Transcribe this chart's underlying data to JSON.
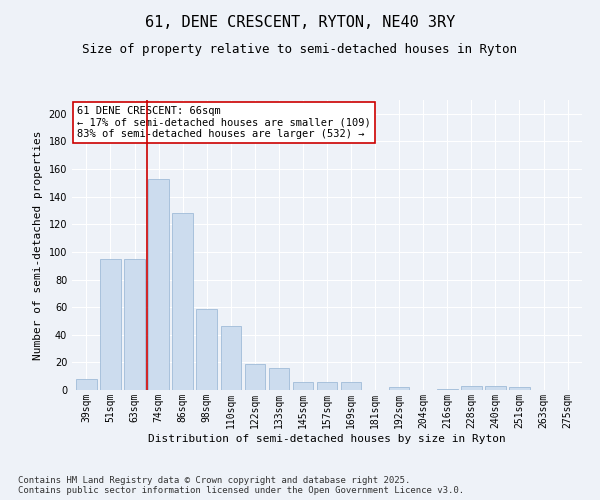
{
  "title": "61, DENE CRESCENT, RYTON, NE40 3RY",
  "subtitle": "Size of property relative to semi-detached houses in Ryton",
  "xlabel": "Distribution of semi-detached houses by size in Ryton",
  "ylabel": "Number of semi-detached properties",
  "categories": [
    "39sqm",
    "51sqm",
    "63sqm",
    "74sqm",
    "86sqm",
    "98sqm",
    "110sqm",
    "122sqm",
    "133sqm",
    "145sqm",
    "157sqm",
    "169sqm",
    "181sqm",
    "192sqm",
    "204sqm",
    "216sqm",
    "228sqm",
    "240sqm",
    "251sqm",
    "263sqm",
    "275sqm"
  ],
  "values": [
    8,
    95,
    95,
    153,
    128,
    59,
    46,
    19,
    16,
    6,
    6,
    6,
    0,
    2,
    0,
    1,
    3,
    3,
    2,
    0,
    0
  ],
  "bar_color": "#ccdcee",
  "bar_edge_color": "#a0bcd8",
  "vline_x_index": 2.5,
  "vline_color": "#cc0000",
  "annotation_text": "61 DENE CRESCENT: 66sqm\n← 17% of semi-detached houses are smaller (109)\n83% of semi-detached houses are larger (532) →",
  "annotation_box_color": "#ffffff",
  "annotation_box_edge": "#cc0000",
  "ylim": [
    0,
    210
  ],
  "yticks": [
    0,
    20,
    40,
    60,
    80,
    100,
    120,
    140,
    160,
    180,
    200
  ],
  "footer_text": "Contains HM Land Registry data © Crown copyright and database right 2025.\nContains public sector information licensed under the Open Government Licence v3.0.",
  "bg_color": "#eef2f8",
  "plot_bg_color": "#eef2f8",
  "grid_color": "#ffffff",
  "title_fontsize": 11,
  "subtitle_fontsize": 9,
  "axis_label_fontsize": 8,
  "tick_fontsize": 7,
  "annotation_fontsize": 7.5,
  "footer_fontsize": 6.5
}
